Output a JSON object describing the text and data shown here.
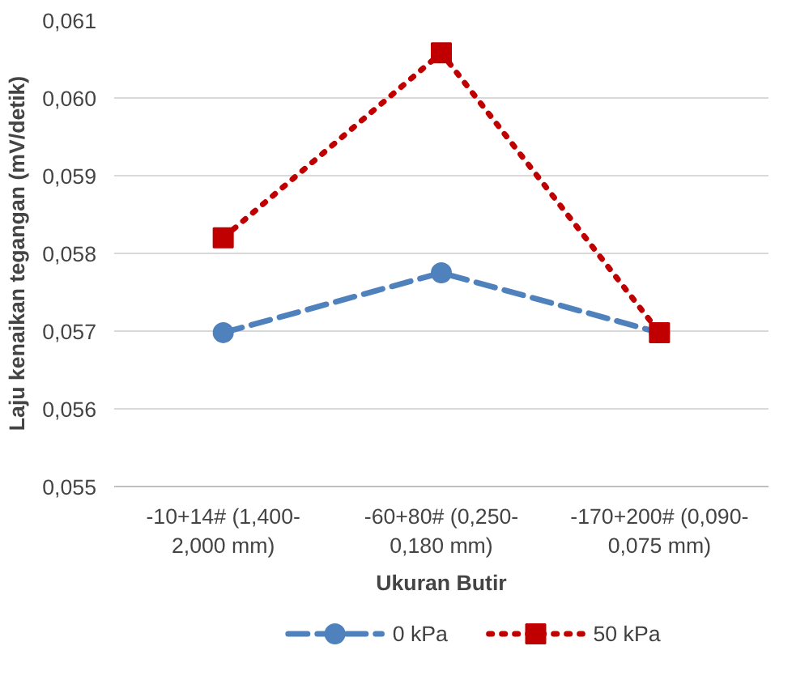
{
  "chart_data": {
    "type": "line",
    "xlabel": "Ukuran Butir",
    "ylabel": "Laju kenaikan tegangan (mV/detik)",
    "categories": [
      "-10+14# (1,400-\n2,000 mm)",
      "-60+80# (0,250-\n0,180 mm)",
      "-170+200# (0,090-\n0,075 mm)"
    ],
    "ylim": [
      0.055,
      0.061
    ],
    "yticks": [
      {
        "value": 0.055,
        "label": "0,055"
      },
      {
        "value": 0.056,
        "label": "0,056"
      },
      {
        "value": 0.057,
        "label": "0,057"
      },
      {
        "value": 0.058,
        "label": "0,058"
      },
      {
        "value": 0.059,
        "label": "0,059"
      },
      {
        "value": 0.06,
        "label": "0,060"
      },
      {
        "value": 0.061,
        "label": "0,061"
      }
    ],
    "grid": "y",
    "legend": "bottom",
    "series": [
      {
        "name": "0 kPa",
        "color": "#4f81bd",
        "marker": "circle",
        "line_style": "dashed",
        "values": [
          0.05698,
          0.05775,
          0.05698
        ]
      },
      {
        "name": "50 kPa",
        "color": "#c00000",
        "marker": "square",
        "line_style": "dotted",
        "values": [
          0.0582,
          0.06058,
          0.05698
        ]
      }
    ]
  }
}
